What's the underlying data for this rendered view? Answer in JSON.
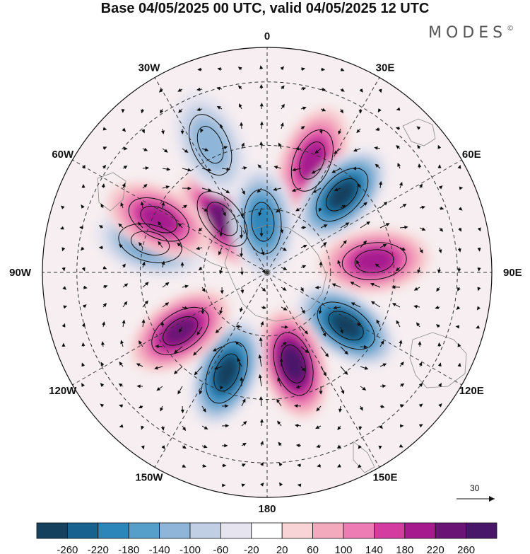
{
  "title": "Base 04/05/2025 00 UTC, valid 04/05/2025 12 UTC",
  "brand": {
    "name": "MODES",
    "mark": "©"
  },
  "longitude_labels": [
    {
      "text": "0",
      "lon": 0
    },
    {
      "text": "30E",
      "lon": 30
    },
    {
      "text": "60E",
      "lon": 60
    },
    {
      "text": "90E",
      "lon": 90
    },
    {
      "text": "120E",
      "lon": 120
    },
    {
      "text": "150E",
      "lon": 150
    },
    {
      "text": "180",
      "lon": 180
    },
    {
      "text": "150W",
      "lon": -150
    },
    {
      "text": "120W",
      "lon": -120
    },
    {
      "text": "90W",
      "lon": -90
    },
    {
      "text": "60W",
      "lon": -60
    },
    {
      "text": "30W",
      "lon": -30
    }
  ],
  "reference_vector": {
    "label": "30"
  },
  "colorbar": {
    "ticks": [
      "-260",
      "-220",
      "-180",
      "-140",
      "-100",
      "-60",
      "-20",
      "20",
      "60",
      "100",
      "140",
      "180",
      "220",
      "260"
    ],
    "colors": [
      "#15405e",
      "#17628f",
      "#2d86b9",
      "#569fcb",
      "#8fb6d8",
      "#c1cfe4",
      "#e6e4ef",
      "#ffffff",
      "#f8d4d6",
      "#f4aabd",
      "#ec7cb3",
      "#d43c9f",
      "#a61c8f",
      "#6a1476",
      "#48176a"
    ]
  },
  "anomaly_centers": [
    {
      "name": "pos-center-30e",
      "lon": 22,
      "colat": 38,
      "value": 180
    },
    {
      "name": "neg-center-45e",
      "lon": 44,
      "colat": 34,
      "value": -260
    },
    {
      "name": "pos-center-85e",
      "lon": 84,
      "colat": 34,
      "value": 200
    },
    {
      "name": "neg-center-125e",
      "lon": 124,
      "colat": 30,
      "value": -260
    },
    {
      "name": "pos-center-165e",
      "lon": 164,
      "colat": 30,
      "value": 260
    },
    {
      "name": "neg-center-160w",
      "lon": -158,
      "colat": 34,
      "value": -260
    },
    {
      "name": "pos-center-125w",
      "lon": -124,
      "colat": 33,
      "value": 240
    },
    {
      "name": "neg-center-75w",
      "lon": -76,
      "colat": 38,
      "value": -140
    },
    {
      "name": "pos-center-40w",
      "lon": -40,
      "colat": 22,
      "value": 220
    },
    {
      "name": "pos-center-60w",
      "lon": -64,
      "colat": 38,
      "value": 180
    },
    {
      "name": "neg-center-5w",
      "lon": -5,
      "colat": 16,
      "value": -200
    },
    {
      "name": "neg-center-25w",
      "lon": -24,
      "colat": 44,
      "value": -120
    }
  ]
}
